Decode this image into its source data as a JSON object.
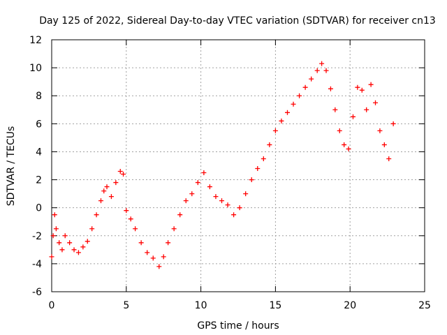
{
  "chart_data": {
    "type": "scatter",
    "title": "Day 125 of 2022, Sidereal Day-to-day VTEC variation (SDTVAR) for receiver cn13",
    "xlabel": "GPS time / hours",
    "ylabel": "SDTVAR / TECUs",
    "xlim": [
      0,
      25
    ],
    "ylim": [
      -6,
      12
    ],
    "xticks": [
      0,
      5,
      10,
      15,
      20,
      25
    ],
    "yticks": [
      -6,
      -4,
      -2,
      0,
      2,
      4,
      6,
      8,
      10,
      12
    ],
    "grid": true,
    "marker": "+",
    "marker_color": "#ff0000",
    "series": [
      {
        "name": "cn13",
        "x": [
          0.0,
          0.1,
          0.2,
          0.3,
          0.5,
          0.7,
          0.9,
          1.2,
          1.5,
          1.8,
          2.1,
          2.4,
          2.7,
          3.0,
          3.3,
          3.5,
          3.7,
          4.0,
          4.3,
          4.6,
          4.8,
          5.0,
          5.3,
          5.6,
          6.0,
          6.4,
          6.8,
          7.2,
          7.5,
          7.8,
          8.2,
          8.6,
          9.0,
          9.4,
          9.8,
          10.2,
          10.6,
          11.0,
          11.4,
          11.8,
          12.2,
          12.6,
          13.0,
          13.4,
          13.8,
          14.2,
          14.6,
          15.0,
          15.4,
          15.8,
          16.2,
          16.6,
          17.0,
          17.4,
          17.8,
          18.1,
          18.4,
          18.7,
          19.0,
          19.3,
          19.6,
          19.9,
          20.2,
          20.5,
          20.8,
          21.1,
          21.4,
          21.7,
          22.0,
          22.3,
          22.6,
          22.9
        ],
        "y": [
          -3.5,
          -2.0,
          -0.5,
          -1.5,
          -2.5,
          -3.0,
          -2.0,
          -2.5,
          -3.0,
          -3.2,
          -2.8,
          -2.4,
          -1.5,
          -0.5,
          0.5,
          1.2,
          1.5,
          0.8,
          1.8,
          2.6,
          2.4,
          -0.2,
          -0.8,
          -1.5,
          -2.5,
          -3.2,
          -3.6,
          -4.2,
          -3.5,
          -2.5,
          -1.5,
          -0.5,
          0.5,
          1.0,
          1.8,
          2.5,
          1.5,
          0.8,
          0.5,
          0.2,
          -0.5,
          0.0,
          1.0,
          2.0,
          2.8,
          3.5,
          4.5,
          5.5,
          6.2,
          6.8,
          7.4,
          8.0,
          8.6,
          9.2,
          9.8,
          10.3,
          9.8,
          8.5,
          7.0,
          5.5,
          4.5,
          4.2,
          6.5,
          8.6,
          8.4,
          7.0,
          8.8,
          7.5,
          5.5,
          4.5,
          3.5,
          6.0
        ]
      }
    ]
  }
}
